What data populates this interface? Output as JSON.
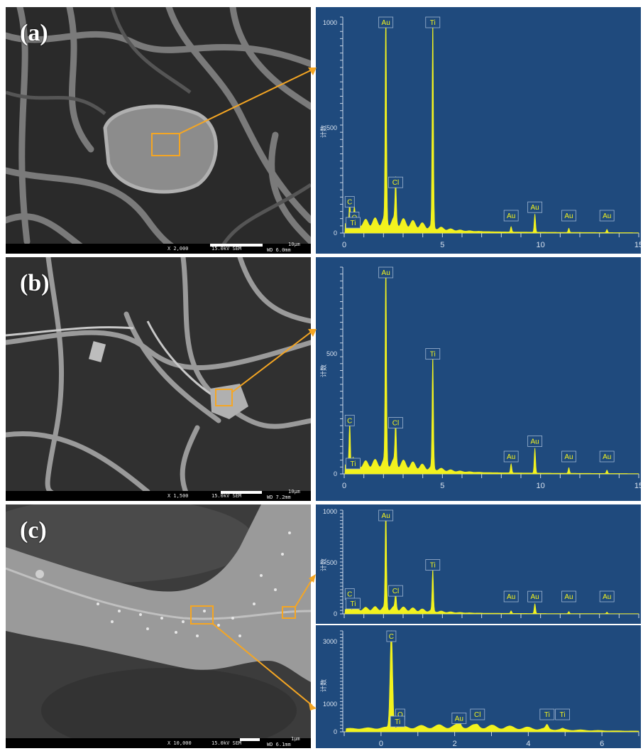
{
  "panels": [
    {
      "id": "a",
      "label": "(a)",
      "sem": {
        "magnification": "X 2,000",
        "voltage": "15.0kV SEM",
        "scale": "10μm",
        "wd": "WD 6.0mm"
      },
      "eds": [
        {
          "ylabel": "计数",
          "y_ticks": [
            "0",
            "500",
            "1000"
          ],
          "x_ticks": [
            "0",
            "5",
            "10",
            "15"
          ],
          "peak_labels": [
            "C",
            "O",
            "Ti",
            "Au",
            "Cl",
            "Ti",
            "Au",
            "Au",
            "Au",
            "Au"
          ]
        }
      ]
    },
    {
      "id": "b",
      "label": "(b)",
      "sem": {
        "magnification": "X 1,500",
        "voltage": "15.0kV SEM",
        "scale": "10μm",
        "wd": "WD 7.2mm"
      },
      "eds": [
        {
          "ylabel": "计数",
          "y_ticks": [
            "0",
            "500"
          ],
          "x_ticks": [
            "0",
            "5",
            "10",
            "15"
          ],
          "peak_labels": [
            "C",
            "Ti",
            "Au",
            "Cl",
            "Ti",
            "Au",
            "Au",
            "Au",
            "Au"
          ]
        }
      ]
    },
    {
      "id": "c",
      "label": "(c)",
      "sem": {
        "magnification": "X 10,000",
        "voltage": "15.0kV SEM",
        "scale": "1μm",
        "wd": "WD 6.1mm"
      },
      "eds": [
        {
          "ylabel": "计数",
          "y_ticks": [
            "0",
            "500",
            "1000"
          ],
          "x_ticks": [],
          "peak_labels": [
            "C",
            "Ti",
            "Au",
            "Cl",
            "Ti",
            "Au",
            "Au",
            "Au",
            "Au"
          ]
        },
        {
          "ylabel": "计数",
          "y_ticks": [
            "0",
            "1000",
            "3000"
          ],
          "x_ticks": [
            "0",
            "2",
            "4",
            "6"
          ],
          "peak_labels": [
            "C",
            "O",
            "Ti",
            "Au",
            "Cl",
            "Ti",
            "Ti"
          ]
        }
      ]
    }
  ],
  "chart_data": [
    {
      "type": "line",
      "panel": "a",
      "xlim": [
        0,
        15
      ],
      "ylim": [
        0,
        1000
      ],
      "peaks": [
        {
          "element": "C",
          "x": 0.28,
          "y": 110
        },
        {
          "element": "O",
          "x": 0.52,
          "y": 70
        },
        {
          "element": "Ti",
          "x": 0.45,
          "y": 30
        },
        {
          "element": "Au",
          "x": 2.12,
          "y": 1000
        },
        {
          "element": "Cl",
          "x": 2.62,
          "y": 200
        },
        {
          "element": "Ti",
          "x": 4.51,
          "y": 960
        },
        {
          "element": "Au",
          "x": 8.5,
          "y": 25
        },
        {
          "element": "Au",
          "x": 9.71,
          "y": 85
        },
        {
          "element": "Au",
          "x": 11.44,
          "y": 20
        },
        {
          "element": "Au",
          "x": 13.38,
          "y": 15
        }
      ]
    },
    {
      "type": "line",
      "panel": "b",
      "xlim": [
        0,
        15
      ],
      "ylim": [
        0,
        900
      ],
      "peaks": [
        {
          "element": "C",
          "x": 0.28,
          "y": 200
        },
        {
          "element": "Ti",
          "x": 0.45,
          "y": 40
        },
        {
          "element": "Au",
          "x": 2.12,
          "y": 900
        },
        {
          "element": "Cl",
          "x": 2.62,
          "y": 190
        },
        {
          "element": "Ti",
          "x": 4.51,
          "y": 490
        },
        {
          "element": "Au",
          "x": 8.5,
          "y": 40
        },
        {
          "element": "Au",
          "x": 9.71,
          "y": 110
        },
        {
          "element": "Au",
          "x": 11.44,
          "y": 25
        },
        {
          "element": "Au",
          "x": 13.38,
          "y": 15
        }
      ]
    },
    {
      "type": "line",
      "panel": "c-upper",
      "xlim": [
        0,
        15
      ],
      "ylim": [
        0,
        1000
      ],
      "peaks": [
        {
          "element": "C",
          "x": 0.28,
          "y": 120
        },
        {
          "element": "Ti",
          "x": 0.45,
          "y": 30
        },
        {
          "element": "Au",
          "x": 2.12,
          "y": 1000
        },
        {
          "element": "Cl",
          "x": 2.62,
          "y": 150
        },
        {
          "element": "Ti",
          "x": 4.51,
          "y": 400
        },
        {
          "element": "Au",
          "x": 8.5,
          "y": 25
        },
        {
          "element": "Au",
          "x": 9.71,
          "y": 95
        },
        {
          "element": "Au",
          "x": 11.44,
          "y": 20
        },
        {
          "element": "Au",
          "x": 13.38,
          "y": 15
        }
      ]
    },
    {
      "type": "line",
      "panel": "c-lower",
      "xlim": [
        -1,
        7
      ],
      "ylim": [
        0,
        3300
      ],
      "peaks": [
        {
          "element": "C",
          "x": 0.28,
          "y": 3250
        },
        {
          "element": "O",
          "x": 0.52,
          "y": 120
        },
        {
          "element": "Ti",
          "x": 0.45,
          "y": 40
        },
        {
          "element": "Au",
          "x": 2.12,
          "y": 200
        },
        {
          "element": "Cl",
          "x": 2.62,
          "y": 40
        },
        {
          "element": "Ti",
          "x": 4.51,
          "y": 130
        },
        {
          "element": "Ti",
          "x": 4.93,
          "y": 30
        }
      ]
    }
  ],
  "colors": {
    "eds_background": "#1f4a7d",
    "spectrum": "#f2f21e",
    "highlight": "#f5a623",
    "label_box": "#1f4a7d"
  }
}
